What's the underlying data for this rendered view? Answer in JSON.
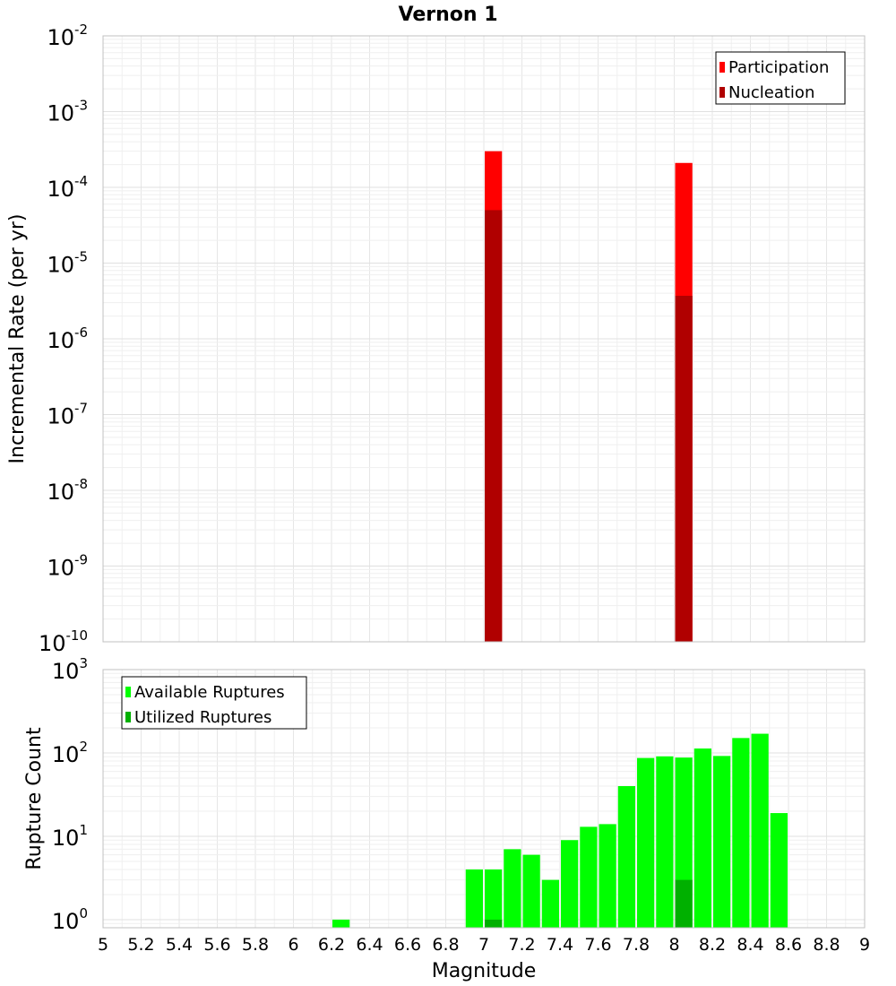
{
  "chart_data": [
    {
      "type": "bar",
      "title": "Vernon 1",
      "ylabel": "Incremental Rate (per yr)",
      "xlabel": "",
      "yscale": "log",
      "ylim": [
        1e-10,
        0.01
      ],
      "xlim": [
        5,
        9
      ],
      "grid": true,
      "legend_position": "top-right",
      "series": [
        {
          "name": "Participation",
          "color": "#ff0000",
          "x": [
            7.05,
            8.05
          ],
          "values": [
            0.0003,
            0.00021
          ]
        },
        {
          "name": "Nucleation",
          "color": "#b00000",
          "x": [
            7.05,
            8.05
          ],
          "values": [
            5e-05,
            3.7e-06
          ]
        }
      ]
    },
    {
      "type": "bar",
      "title": "",
      "ylabel": "Rupture Count",
      "xlabel": "Magnitude",
      "yscale": "log",
      "ylim": [
        0.8,
        1000
      ],
      "xlim": [
        5,
        9
      ],
      "grid": true,
      "legend_position": "top-left",
      "xticks": [
        "5",
        "5.2",
        "5.4",
        "5.6",
        "5.8",
        "6",
        "6.2",
        "6.4",
        "6.6",
        "6.8",
        "7",
        "7.2",
        "7.4",
        "7.6",
        "7.8",
        "8",
        "8.2",
        "8.4",
        "8.6",
        "8.8",
        "9"
      ],
      "series": [
        {
          "name": "Available Ruptures",
          "color": "#00ff00",
          "x": [
            6.25,
            6.95,
            7.05,
            7.15,
            7.25,
            7.35,
            7.45,
            7.55,
            7.65,
            7.75,
            7.85,
            7.95,
            8.05,
            8.15,
            8.25,
            8.35,
            8.45,
            8.55
          ],
          "values": [
            1,
            4,
            4,
            7,
            6,
            3,
            9,
            13,
            14,
            40,
            87,
            91,
            88,
            113,
            92,
            151,
            170,
            19
          ]
        },
        {
          "name": "Utilized Ruptures",
          "color": "#00b000",
          "x": [
            7.05,
            8.05
          ],
          "values": [
            1,
            3
          ]
        }
      ]
    }
  ]
}
